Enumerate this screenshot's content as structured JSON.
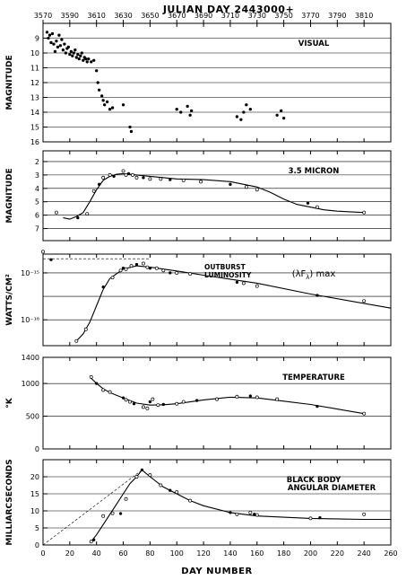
{
  "chart_data": {
    "title": "JULIAN DAY 2443000+",
    "top_ticks": [
      "3570",
      "3590",
      "3610",
      "3630",
      "3650",
      "3670",
      "3690",
      "3710",
      "3730",
      "3750",
      "3770",
      "3790",
      "3810"
    ],
    "xlabel": "DAY NUMBER",
    "x_ticks": [
      "0",
      "20",
      "40",
      "60",
      "80",
      "100",
      "120",
      "140",
      "160",
      "180",
      "200",
      "220",
      "240",
      "260"
    ],
    "xlim": [
      0,
      260
    ],
    "panels": [
      {
        "type": "scatter",
        "label": "VISUAL",
        "ylabel": "MAGNITUDE",
        "ylim": [
          16,
          8
        ],
        "y_ticks": [
          {
            "v": 9,
            "t": "9"
          },
          {
            "v": 10,
            "t": "10"
          },
          {
            "v": 11,
            "t": "11"
          },
          {
            "v": 12,
            "t": "12"
          },
          {
            "v": 13,
            "t": "13"
          },
          {
            "v": 14,
            "t": "14"
          },
          {
            "v": 15,
            "t": "15"
          },
          {
            "v": 16,
            "t": "16"
          }
        ],
        "grid": [
          9,
          10,
          11,
          12,
          13,
          14,
          15
        ],
        "points": [
          [
            3,
            8.6
          ],
          [
            4,
            9.0
          ],
          [
            5,
            8.8
          ],
          [
            6,
            9.3
          ],
          [
            7,
            8.7
          ],
          [
            8,
            9.4
          ],
          [
            9,
            9.9
          ],
          [
            10,
            9.2
          ],
          [
            11,
            9.6
          ],
          [
            12,
            8.8
          ],
          [
            13,
            9.5
          ],
          [
            14,
            9.1
          ],
          [
            15,
            9.8
          ],
          [
            16,
            9.4
          ],
          [
            17,
            10.0
          ],
          [
            18,
            9.7
          ],
          [
            19,
            9.6
          ],
          [
            20,
            10.1
          ],
          [
            21,
            9.9
          ],
          [
            22,
            10.2
          ],
          [
            23,
            10.0
          ],
          [
            24,
            9.8
          ],
          [
            25,
            10.3
          ],
          [
            26,
            10.1
          ],
          [
            27,
            10.4
          ],
          [
            28,
            10.2
          ],
          [
            29,
            10.0
          ],
          [
            30,
            10.5
          ],
          [
            31,
            10.3
          ],
          [
            32,
            10.4
          ],
          [
            33,
            10.6
          ],
          [
            34,
            10.4
          ],
          [
            36,
            10.6
          ],
          [
            38,
            10.5
          ],
          [
            40,
            11.2
          ],
          [
            41,
            12.0
          ],
          [
            42,
            12.5
          ],
          [
            44,
            12.9
          ],
          [
            45,
            13.2
          ],
          [
            46,
            13.5
          ],
          [
            48,
            13.3
          ],
          [
            50,
            13.8
          ],
          [
            52,
            13.7
          ],
          [
            60,
            13.5
          ],
          [
            65,
            15.0
          ],
          [
            66,
            15.3
          ],
          [
            100,
            13.8
          ],
          [
            103,
            14.0
          ],
          [
            108,
            13.6
          ],
          [
            110,
            14.2
          ],
          [
            111,
            13.9
          ],
          [
            145,
            14.3
          ],
          [
            148,
            14.5
          ],
          [
            150,
            14.0
          ],
          [
            152,
            13.5
          ],
          [
            155,
            13.8
          ],
          [
            175,
            14.2
          ],
          [
            178,
            13.9
          ],
          [
            180,
            14.4
          ]
        ]
      },
      {
        "type": "line",
        "label": "3.5 MICRON",
        "ylabel": "MAGNITUDE",
        "ylim": [
          7.9,
          1.2
        ],
        "y_ticks": [
          {
            "v": 2,
            "t": "2"
          },
          {
            "v": 3,
            "t": "3"
          },
          {
            "v": 4,
            "t": "4"
          },
          {
            "v": 5,
            "t": "5"
          },
          {
            "v": 6,
            "t": "6"
          },
          {
            "v": 7,
            "t": "7"
          }
        ],
        "grid": [
          2,
          3,
          4,
          5,
          6,
          7
        ],
        "curve": [
          [
            15,
            6.2
          ],
          [
            20,
            6.3
          ],
          [
            25,
            6.1
          ],
          [
            30,
            5.8
          ],
          [
            35,
            5.0
          ],
          [
            40,
            4.1
          ],
          [
            45,
            3.4
          ],
          [
            50,
            3.1
          ],
          [
            55,
            2.95
          ],
          [
            60,
            2.9
          ],
          [
            70,
            3.0
          ],
          [
            80,
            3.1
          ],
          [
            100,
            3.3
          ],
          [
            120,
            3.35
          ],
          [
            140,
            3.5
          ],
          [
            150,
            3.7
          ],
          [
            160,
            3.9
          ],
          [
            170,
            4.3
          ],
          [
            180,
            4.8
          ],
          [
            190,
            5.2
          ],
          [
            200,
            5.4
          ],
          [
            210,
            5.6
          ],
          [
            220,
            5.7
          ],
          [
            240,
            5.8
          ]
        ],
        "points": [
          [
            10,
            5.8
          ],
          [
            26,
            6.2
          ],
          [
            33,
            5.9
          ],
          [
            38,
            4.2
          ],
          [
            42,
            3.7
          ],
          [
            45,
            3.2
          ],
          [
            50,
            3.0
          ],
          [
            53,
            3.1
          ],
          [
            60,
            2.7
          ],
          [
            62,
            3.0
          ],
          [
            64,
            2.9
          ],
          [
            67,
            3.0
          ],
          [
            70,
            3.2
          ],
          [
            75,
            3.2
          ],
          [
            80,
            3.3
          ],
          [
            88,
            3.3
          ],
          [
            95,
            3.35
          ],
          [
            105,
            3.4
          ],
          [
            118,
            3.5
          ],
          [
            140,
            3.7
          ],
          [
            152,
            3.9
          ],
          [
            160,
            4.1
          ],
          [
            198,
            5.1
          ],
          [
            205,
            5.4
          ],
          [
            240,
            5.8
          ]
        ]
      },
      {
        "type": "line",
        "label": "(λF",
        "label_sub": "λ",
        "label_end": ") max",
        "annotation": [
          "OUTBURST",
          "LUMINOSITY"
        ],
        "ylabel": "WATTS/CM²",
        "ylog": true,
        "ylim": [
          -16.55,
          -14.6
        ],
        "y_ticks": [
          {
            "v": -15,
            "t": "10⁻¹⁵"
          },
          {
            "v": -16,
            "t": "10⁻¹⁶"
          }
        ],
        "grid": [
          -15,
          -15.5,
          -16
        ],
        "dashed_level": -14.7,
        "curve": [
          [
            25,
            -16.45
          ],
          [
            30,
            -16.3
          ],
          [
            35,
            -16.05
          ],
          [
            40,
            -15.7
          ],
          [
            45,
            -15.35
          ],
          [
            50,
            -15.12
          ],
          [
            60,
            -14.92
          ],
          [
            70,
            -14.85
          ],
          [
            80,
            -14.88
          ],
          [
            100,
            -14.96
          ],
          [
            120,
            -15.05
          ],
          [
            160,
            -15.22
          ],
          [
            200,
            -15.45
          ],
          [
            260,
            -15.75
          ]
        ],
        "points": [
          [
            0,
            -14.55
          ],
          [
            6,
            -14.72
          ],
          [
            25,
            -16.45
          ],
          [
            32,
            -16.2
          ],
          [
            45,
            -15.3
          ],
          [
            52,
            -15.1
          ],
          [
            58,
            -14.95
          ],
          [
            60,
            -14.9
          ],
          [
            62,
            -14.92
          ],
          [
            66,
            -14.85
          ],
          [
            70,
            -14.82
          ],
          [
            75,
            -14.8
          ],
          [
            78,
            -14.88
          ],
          [
            80,
            -14.9
          ],
          [
            85,
            -14.9
          ],
          [
            90,
            -14.95
          ],
          [
            95,
            -15.0
          ],
          [
            100,
            -15.0
          ],
          [
            110,
            -15.02
          ],
          [
            145,
            -15.2
          ],
          [
            150,
            -15.22
          ],
          [
            160,
            -15.28
          ],
          [
            205,
            -15.48
          ],
          [
            240,
            -15.6
          ]
        ]
      },
      {
        "type": "line",
        "label": "TEMPERATURE",
        "ylabel": "°K",
        "ylim": [
          0,
          1400
        ],
        "y_ticks": [
          {
            "v": 0,
            "t": "0"
          },
          {
            "v": 500,
            "t": "500"
          },
          {
            "v": 1000,
            "t": "1000"
          },
          {
            "v": 1400,
            "t": "1400"
          }
        ],
        "grid": [
          500,
          1000
        ],
        "curve": [
          [
            35,
            1100
          ],
          [
            40,
            1000
          ],
          [
            45,
            920
          ],
          [
            50,
            860
          ],
          [
            60,
            780
          ],
          [
            70,
            700
          ],
          [
            80,
            670
          ],
          [
            90,
            675
          ],
          [
            100,
            690
          ],
          [
            120,
            750
          ],
          [
            140,
            790
          ],
          [
            160,
            780
          ],
          [
            180,
            730
          ],
          [
            200,
            680
          ],
          [
            220,
            610
          ],
          [
            240,
            540
          ]
        ],
        "points": [
          [
            36,
            1100
          ],
          [
            40,
            1000
          ],
          [
            45,
            900
          ],
          [
            50,
            870
          ],
          [
            60,
            780
          ],
          [
            62,
            750
          ],
          [
            65,
            720
          ],
          [
            68,
            690
          ],
          [
            75,
            640
          ],
          [
            78,
            620
          ],
          [
            80,
            720
          ],
          [
            82,
            760
          ],
          [
            86,
            670
          ],
          [
            90,
            680
          ],
          [
            100,
            690
          ],
          [
            105,
            720
          ],
          [
            115,
            740
          ],
          [
            130,
            760
          ],
          [
            145,
            800
          ],
          [
            155,
            810
          ],
          [
            160,
            790
          ],
          [
            175,
            760
          ],
          [
            205,
            650
          ],
          [
            240,
            540
          ]
        ]
      },
      {
        "type": "line",
        "label": "BLACK BODY",
        "label2": "ANGULAR DIAMETER",
        "ylabel": "MILLIARCSECONDS",
        "ylim": [
          0,
          25
        ],
        "y_ticks": [
          {
            "v": 0,
            "t": "0"
          },
          {
            "v": 5,
            "t": "5"
          },
          {
            "v": 10,
            "t": "10"
          },
          {
            "v": 15,
            "t": "15"
          },
          {
            "v": 20,
            "t": "20"
          }
        ],
        "grid": [
          5,
          10,
          15,
          20
        ],
        "curve": [
          [
            36,
            1
          ],
          [
            40,
            3
          ],
          [
            45,
            6
          ],
          [
            50,
            9
          ],
          [
            55,
            12
          ],
          [
            60,
            15
          ],
          [
            65,
            18
          ],
          [
            70,
            20
          ],
          [
            74,
            22
          ],
          [
            80,
            20
          ],
          [
            90,
            17
          ],
          [
            100,
            15
          ],
          [
            110,
            13
          ],
          [
            120,
            11.5
          ],
          [
            140,
            9.5
          ],
          [
            160,
            8.5
          ],
          [
            200,
            7.8
          ],
          [
            240,
            7.5
          ],
          [
            260,
            7.5
          ]
        ],
        "dashed": [
          [
            0,
            0
          ],
          [
            74,
            22
          ]
        ],
        "points": [
          [
            36,
            1
          ],
          [
            38,
            1.5
          ],
          [
            45,
            8.5
          ],
          [
            52,
            9.3
          ],
          [
            58,
            9.2
          ],
          [
            62,
            13.5
          ],
          [
            70,
            20
          ],
          [
            74,
            22
          ],
          [
            80,
            20.5
          ],
          [
            88,
            17.5
          ],
          [
            95,
            16
          ],
          [
            100,
            15.5
          ],
          [
            110,
            13
          ],
          [
            140,
            9.5
          ],
          [
            145,
            9
          ],
          [
            155,
            9.5
          ],
          [
            158,
            9
          ],
          [
            160,
            8.8
          ],
          [
            200,
            7.8
          ],
          [
            207,
            8.0
          ],
          [
            240,
            9
          ]
        ]
      }
    ]
  }
}
